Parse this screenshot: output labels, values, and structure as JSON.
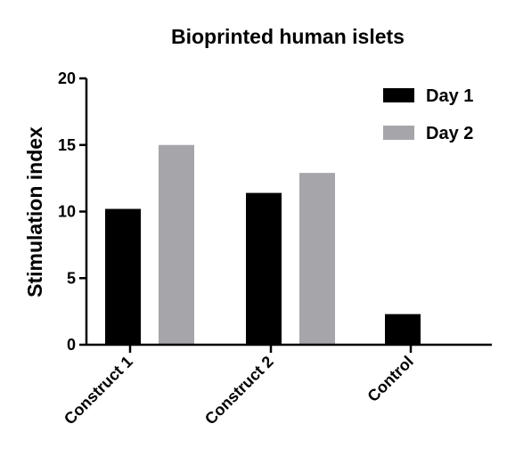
{
  "chart_data": {
    "type": "bar",
    "title": "Bioprinted human islets",
    "xlabel": "",
    "ylabel": "Stimulation index",
    "categories": [
      "Construct 1",
      "Construct 2",
      "Control"
    ],
    "series": [
      {
        "name": "Day 1",
        "values": [
          10.2,
          11.4,
          2.3
        ],
        "color": "#000000"
      },
      {
        "name": "Day 2",
        "values": [
          15.0,
          12.9,
          null
        ],
        "color": "#a6a6aa"
      }
    ],
    "ylim": [
      0,
      20
    ],
    "yticks": [
      0,
      5,
      10,
      15,
      20
    ],
    "ytick_labels": [
      "0",
      "5",
      "10",
      "15",
      "20"
    ],
    "legend_position": "top-right",
    "grid": false
  }
}
